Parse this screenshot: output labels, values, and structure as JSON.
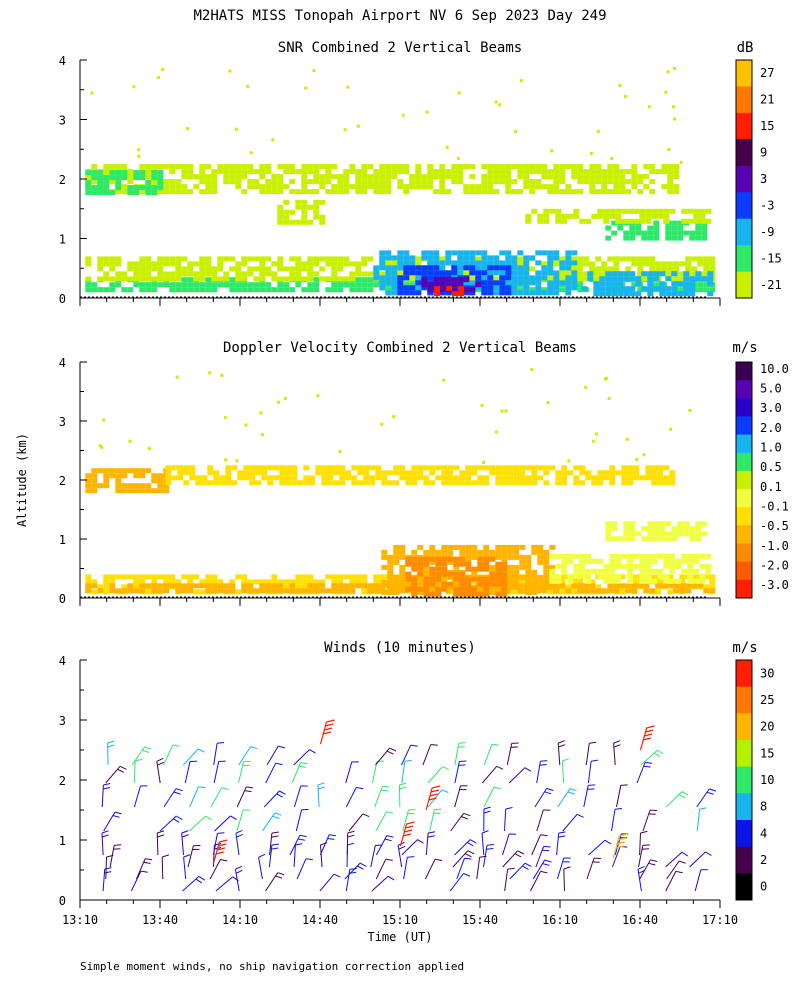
{
  "title": "M2HATS MISS Tonopah Airport NV   6 Sep 2023 Day 249",
  "footer_note": "Simple moment winds, no ship navigation correction applied",
  "y_axis_label": "Altitude (km)",
  "x_axis_label": "Time (UT)",
  "chart_data": [
    {
      "type": "heatmap",
      "title": "SNR Combined 2 Vertical Beams",
      "units": "dB",
      "y_ticks": [
        "0",
        "1",
        "2",
        "3",
        "4"
      ],
      "ylim": [
        0,
        4
      ],
      "colorbar_labels": [
        "-21",
        "-15",
        "-9",
        "-3",
        "3",
        "9",
        "15",
        "21",
        "27"
      ],
      "colorbar_colors": [
        "#c8f000",
        "#2ee86a",
        "#18b4f0",
        "#0a3cff",
        "#5a00b4",
        "#46004e",
        "#ff1e00",
        "#ff7800",
        "#ffc000"
      ],
      "regions": [
        {
          "t0": 13.2,
          "t1": 17.1,
          "z0": 0.1,
          "z1": 0.35,
          "color": "#2ee86a"
        },
        {
          "t0": 13.2,
          "t1": 17.1,
          "z0": 0.35,
          "z1": 0.7,
          "color": "#c8f000"
        },
        {
          "t0": 15.0,
          "t1": 16.25,
          "z0": 0.1,
          "z1": 0.8,
          "color": "#18b4f0"
        },
        {
          "t0": 15.15,
          "t1": 15.85,
          "z0": 0.1,
          "z1": 0.55,
          "color": "#0a3cff"
        },
        {
          "t0": 15.3,
          "t1": 15.65,
          "z0": 0.1,
          "z1": 0.35,
          "color": "#5a00b4"
        },
        {
          "t0": 15.38,
          "t1": 15.55,
          "z0": 0.1,
          "z1": 0.2,
          "color": "#ff1e00"
        },
        {
          "t0": 16.3,
          "t1": 17.1,
          "z0": 0.1,
          "z1": 0.45,
          "color": "#18b4f0"
        },
        {
          "t0": 16.45,
          "t1": 17.05,
          "z0": 1.0,
          "z1": 1.3,
          "color": "#2ee86a"
        },
        {
          "t0": 13.2,
          "t1": 16.9,
          "z0": 1.8,
          "z1": 2.25,
          "color": "#c8f000"
        },
        {
          "t0": 13.2,
          "t1": 13.65,
          "z0": 1.75,
          "z1": 2.15,
          "color": "#2ee86a"
        },
        {
          "t0": 14.4,
          "t1": 14.7,
          "z0": 1.3,
          "z1": 1.65,
          "color": "#c8f000"
        },
        {
          "t0": 15.95,
          "t1": 17.1,
          "z0": 1.3,
          "z1": 1.5,
          "color": "#c8f000"
        }
      ]
    },
    {
      "type": "heatmap",
      "title": "Doppler Velocity Combined 2 Vertical Beams",
      "units": "m/s",
      "y_ticks": [
        "0",
        "1",
        "2",
        "3",
        "4"
      ],
      "ylim": [
        0,
        4
      ],
      "colorbar_labels": [
        "-3.0",
        "-2.0",
        "-1.0",
        "-0.5",
        "-0.1",
        "0.1",
        "0.5",
        "1.0",
        "2.0",
        "3.0",
        "5.0",
        "10.0"
      ],
      "colorbar_colors": [
        "#ff1e00",
        "#ff5a00",
        "#ff8c00",
        "#ffb400",
        "#ffe000",
        "#f0ff40",
        "#c8f000",
        "#2ee86a",
        "#18b4f0",
        "#0a3cff",
        "#2a00c8",
        "#5a00b4",
        "#3c0050"
      ],
      "regions": [
        {
          "t0": 13.2,
          "t1": 17.1,
          "z0": 0.1,
          "z1": 0.4,
          "color": "#ffe000"
        },
        {
          "t0": 13.2,
          "t1": 17.1,
          "z0": 0.1,
          "z1": 0.25,
          "color": "#ffb400"
        },
        {
          "t0": 15.05,
          "t1": 16.1,
          "z0": 0.1,
          "z1": 0.9,
          "color": "#ffb400"
        },
        {
          "t0": 15.2,
          "t1": 15.8,
          "z0": 0.1,
          "z1": 0.7,
          "color": "#ff8c00"
        },
        {
          "t0": 16.1,
          "t1": 17.1,
          "z0": 0.3,
          "z1": 0.75,
          "color": "#f0ff40"
        },
        {
          "t0": 13.2,
          "t1": 13.7,
          "z0": 1.85,
          "z1": 2.2,
          "color": "#ffb400"
        },
        {
          "t0": 13.7,
          "t1": 16.85,
          "z0": 1.95,
          "z1": 2.25,
          "color": "#ffe000"
        },
        {
          "t0": 16.45,
          "t1": 17.05,
          "z0": 1.0,
          "z1": 1.3,
          "color": "#f0ff40"
        }
      ]
    },
    {
      "type": "wind_barbs",
      "title": "Winds (10 minutes)",
      "units": "m/s",
      "y_ticks": [
        "0",
        "1",
        "2",
        "3",
        "4"
      ],
      "ylim": [
        0,
        4
      ],
      "x_ticks": [
        "13:10",
        "13:40",
        "14:10",
        "14:40",
        "15:10",
        "15:40",
        "16:10",
        "16:40",
        "17:10"
      ],
      "xlim_hours": [
        13.1667,
        17.1667
      ],
      "colorbar_labels": [
        "0",
        "2",
        "4",
        "8",
        "10",
        "15",
        "20",
        "25",
        "30"
      ],
      "colorbar_colors": [
        "#000000",
        "#46004e",
        "#0a14e6",
        "#18b4f0",
        "#2ee86a",
        "#b4f000",
        "#ffb400",
        "#ff7800",
        "#ff1e00"
      ],
      "barb_times_hours": [
        13.33,
        13.5,
        13.67,
        13.83,
        14.0,
        14.17,
        14.33,
        14.5,
        14.67,
        14.83,
        15.0,
        15.17,
        15.33,
        15.5,
        15.67,
        15.83,
        16.0,
        16.17,
        16.33,
        16.5,
        16.67,
        16.83,
        17.0
      ],
      "barb_altitudes_km": [
        0.15,
        0.35,
        0.55,
        0.75,
        1.15,
        1.55,
        1.95,
        2.25
      ],
      "highlight_barbs": [
        {
          "t": 14.67,
          "z": 2.6,
          "speed": 30
        },
        {
          "t": 16.67,
          "z": 2.5,
          "speed": 30
        },
        {
          "t": 15.33,
          "z": 1.5,
          "speed": 30
        },
        {
          "t": 14.0,
          "z": 0.6,
          "speed": 30
        },
        {
          "t": 15.17,
          "z": 0.9,
          "speed": 30
        },
        {
          "t": 16.5,
          "z": 0.7,
          "speed": 20
        }
      ]
    }
  ]
}
